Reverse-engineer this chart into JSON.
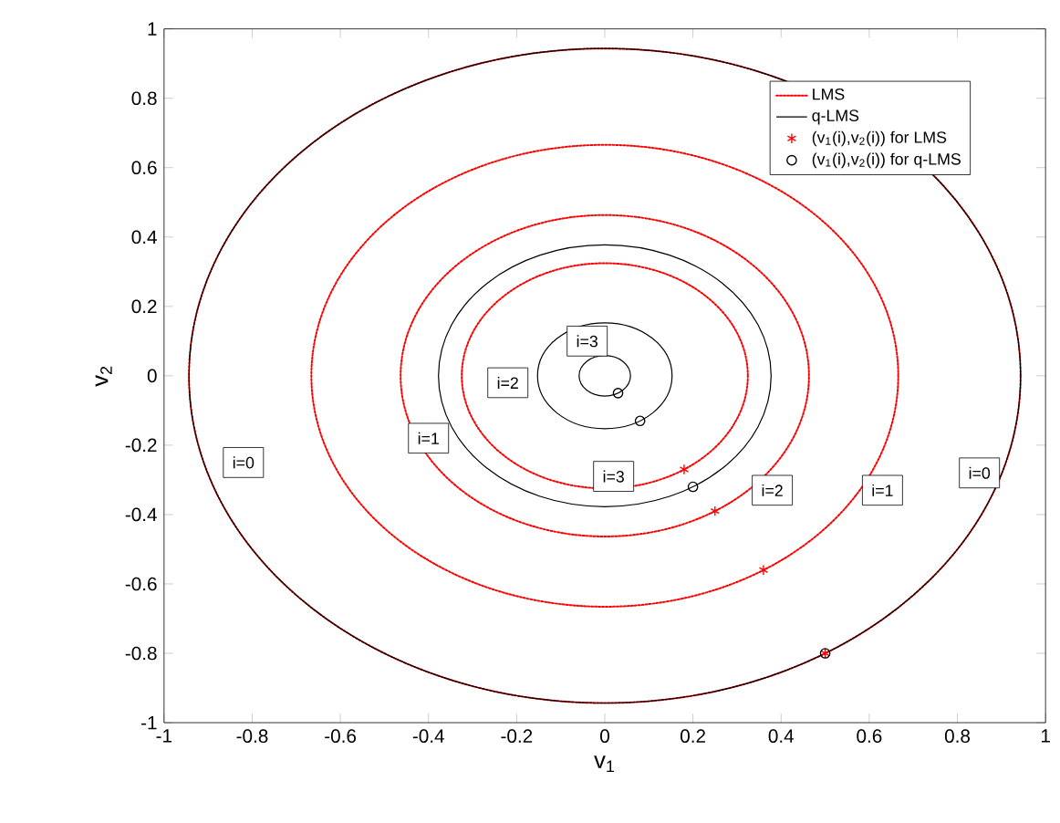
{
  "chart_data": {
    "type": "scatter",
    "xlabel": "v$_{1}$",
    "ylabel": "v$_{2}$",
    "xlim": [
      -1,
      1
    ],
    "ylim": [
      -1,
      1
    ],
    "xticks": [
      -1,
      -0.8,
      -0.6,
      -0.4,
      -0.2,
      0,
      0.2,
      0.4,
      0.6,
      0.8,
      1
    ],
    "yticks": [
      -1,
      -0.8,
      -0.6,
      -0.4,
      -0.2,
      0,
      0.2,
      0.4,
      0.6,
      0.8,
      1
    ],
    "legend": "top right",
    "grid": false,
    "series": [
      {
        "name": "(v$_{1}$(i),v$_{2}$(i)) for LMS",
        "color": "#ff0000",
        "marker": "cross",
        "x": [
          0.5,
          0.36,
          0.25,
          0.18
        ],
        "values": [
          -0.8,
          -0.56,
          -0.39,
          -0.27
        ]
      },
      {
        "name": "(v$_{1}$(i),v$_{2}$(i)) for q-LMS",
        "color": "#000000",
        "marker": "circle",
        "x": [
          0.5,
          0.2,
          0.08,
          0.03
        ],
        "values": [
          -0.8,
          -0.32,
          -0.13,
          -0.05
        ]
      }
    ],
    "annotations": [
      "LMS",
      "q-LMS",
      {
        "text": "i=0",
        "x": -0.82,
        "y": -0.25
      },
      {
        "text": "i=1",
        "x": -0.4,
        "y": -0.18
      },
      {
        "text": "i=2",
        "x": -0.22,
        "y": -0.02
      },
      {
        "text": "i=3",
        "x": -0.04,
        "y": 0.1
      },
      {
        "text": "i=3",
        "x": 0.02,
        "y": -0.29
      },
      {
        "text": "i=2",
        "x": 0.38,
        "y": -0.33
      },
      {
        "text": "i=1",
        "x": 0.63,
        "y": -0.33
      },
      {
        "text": "i=0",
        "x": 0.85,
        "y": -0.28
      }
    ]
  }
}
